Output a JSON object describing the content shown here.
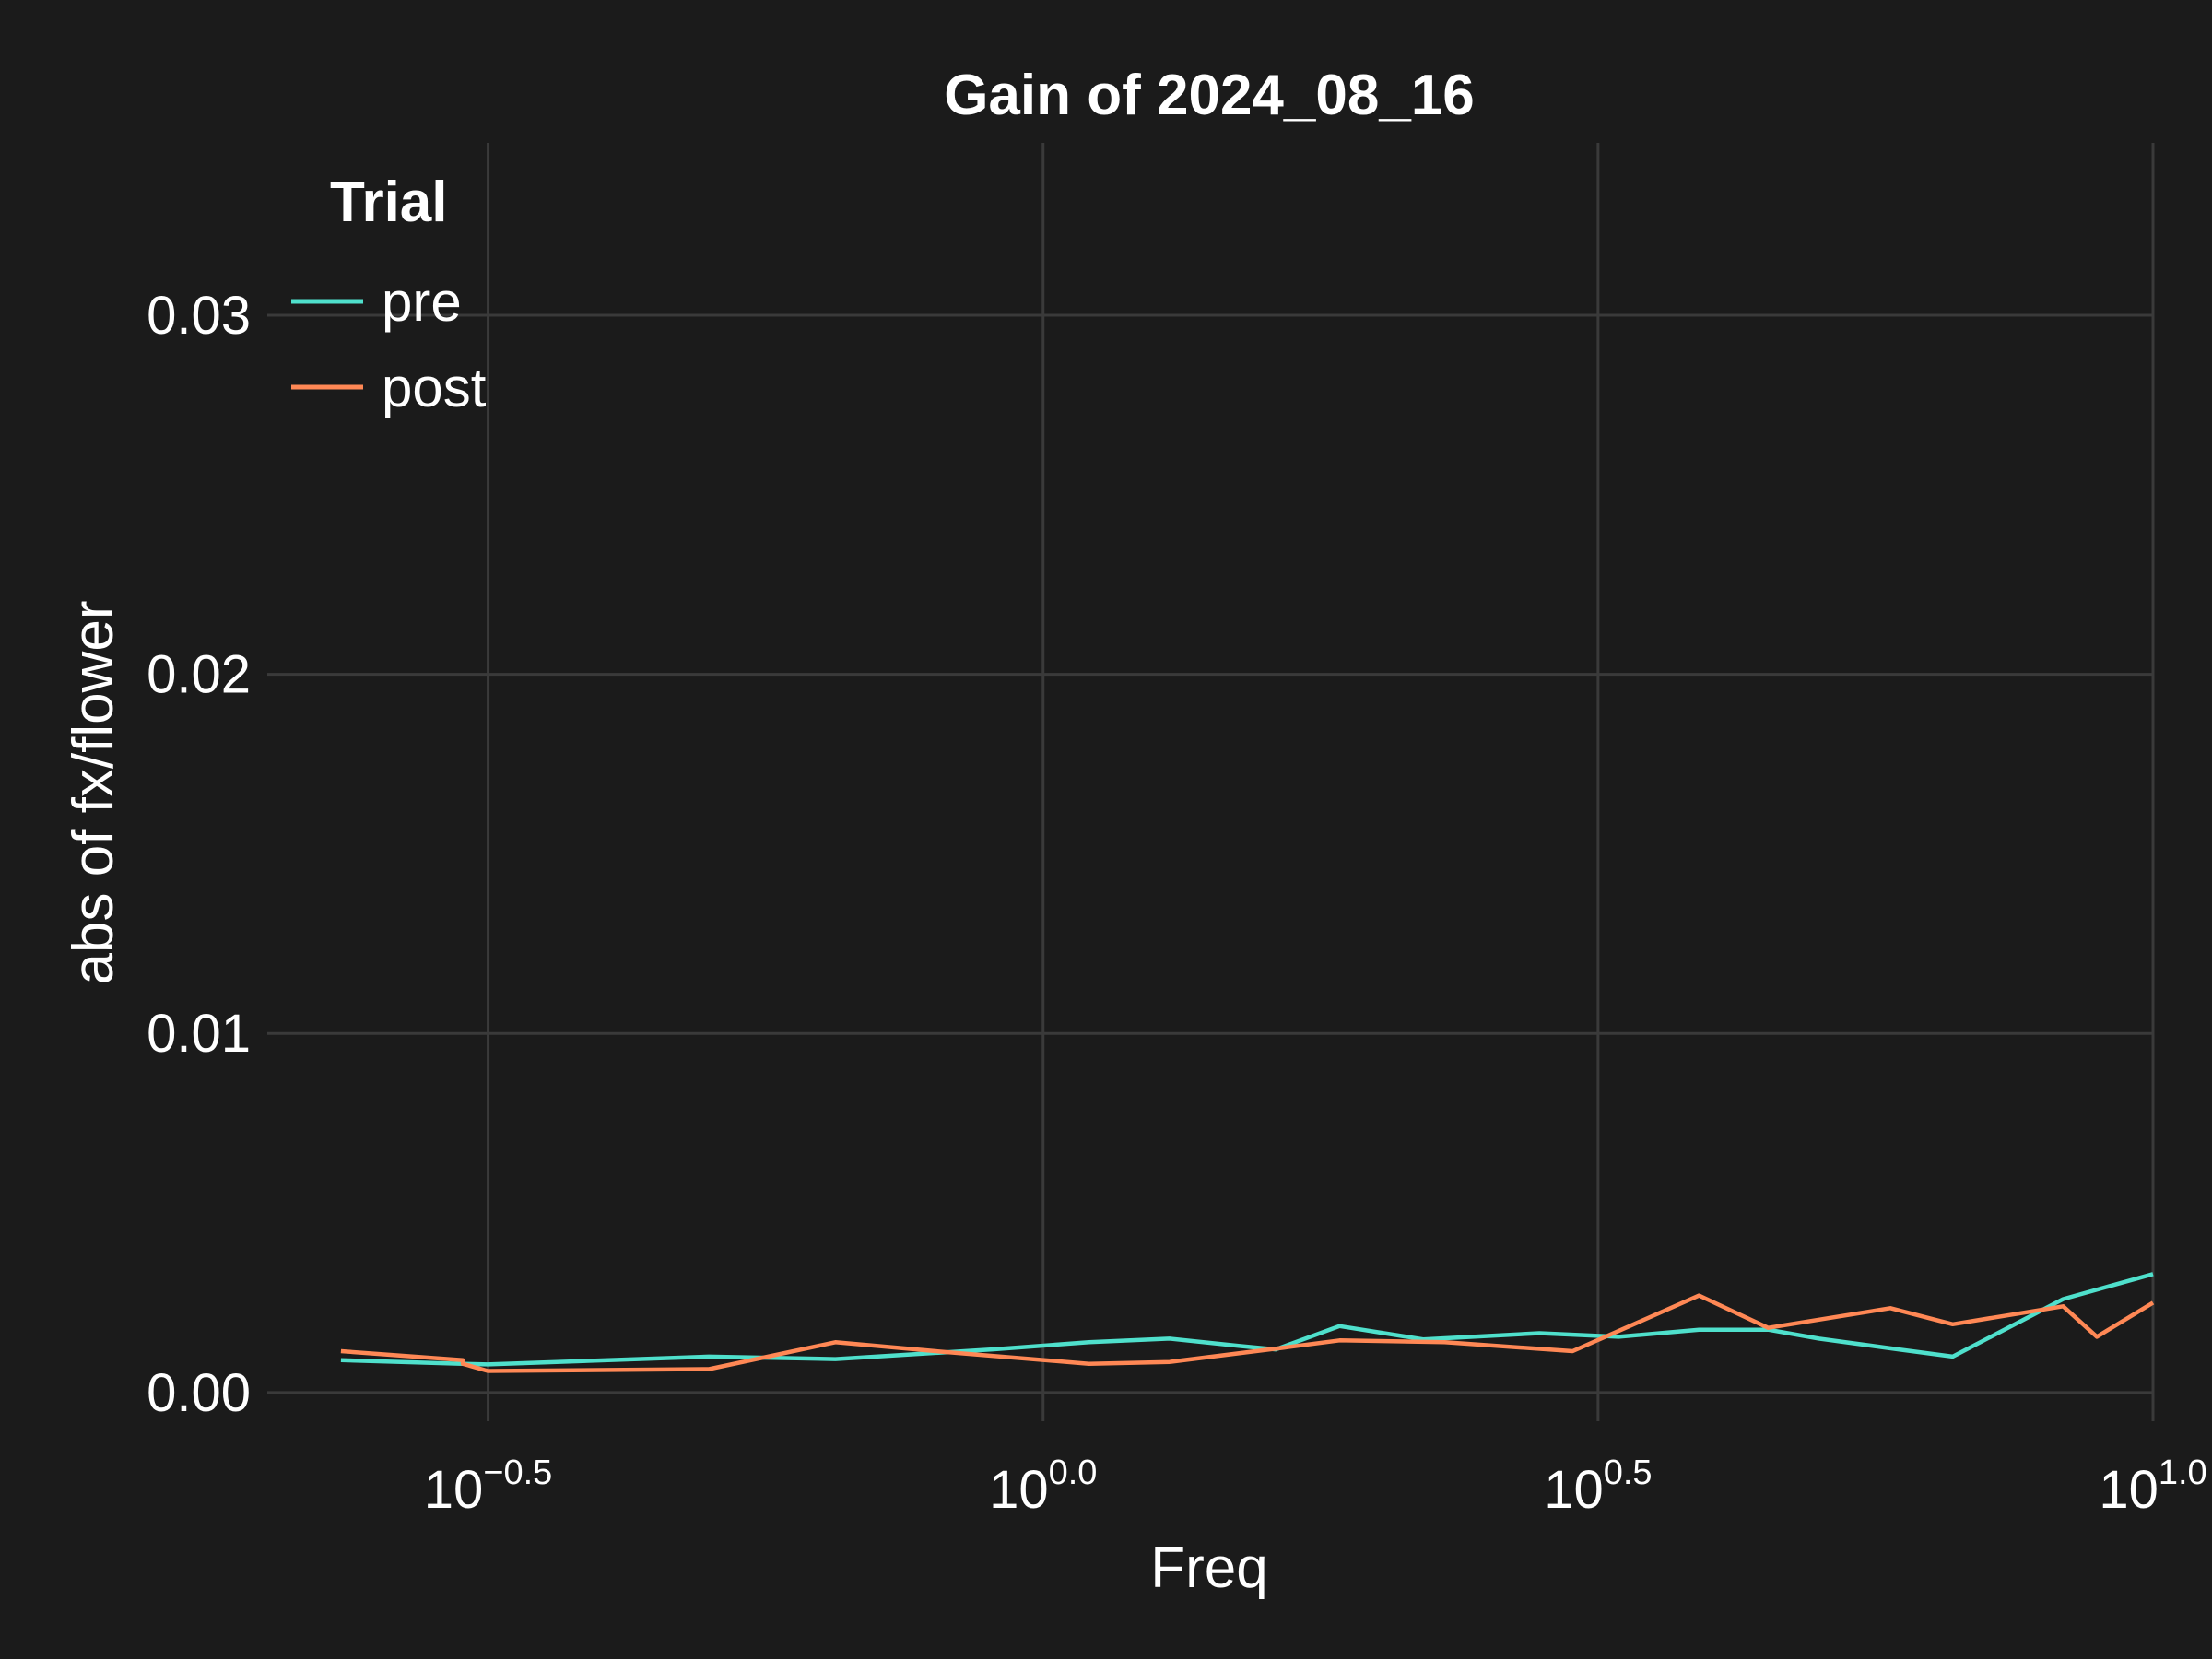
{
  "chart_data": {
    "type": "line",
    "title": "Gain of 2024_08_16",
    "xlabel": "Freq",
    "ylabel": "abs of fx/flower",
    "xscale": "log10",
    "xlim": [
      0.2,
      10
    ],
    "ylim": [
      -0.0008,
      0.0348
    ],
    "grid": true,
    "legend": {
      "title": "Trial",
      "placement": "top-left"
    },
    "x_ticks": [
      {
        "base": "10",
        "exp": "−0.5",
        "value": 0.3162
      },
      {
        "base": "10",
        "exp": "0.0",
        "value": 1.0
      },
      {
        "base": "10",
        "exp": "0.5",
        "value": 3.1623
      },
      {
        "base": "10",
        "exp": "1.0",
        "value": 10.0
      }
    ],
    "y_ticks": [
      {
        "label": "0.00",
        "value": 0.0
      },
      {
        "label": "0.01",
        "value": 0.01
      },
      {
        "label": "0.02",
        "value": 0.02
      },
      {
        "label": "0.03",
        "value": 0.03
      }
    ],
    "series": [
      {
        "name": "pre",
        "color": "#4fe0cc",
        "points": [
          [
            0.233,
            0.0009
          ],
          [
            0.3,
            0.0008
          ],
          [
            0.3,
            0.0008
          ],
          [
            0.316,
            0.00078
          ],
          [
            0.5,
            0.001
          ],
          [
            0.65,
            0.00093
          ],
          [
            0.9,
            0.0012
          ],
          [
            1.1,
            0.0014
          ],
          [
            1.3,
            0.0015
          ],
          [
            1.5,
            0.0013
          ],
          [
            1.62,
            0.0012
          ],
          [
            1.85,
            0.00185
          ],
          [
            2.2,
            0.00148
          ],
          [
            2.8,
            0.00165
          ],
          [
            3.3,
            0.00155
          ],
          [
            3.9,
            0.00175
          ],
          [
            4.5,
            0.00175
          ],
          [
            5.0,
            0.0015
          ],
          [
            5.9,
            0.0012
          ],
          [
            6.6,
            0.001
          ],
          [
            8.3,
            0.0026
          ],
          [
            10.0,
            0.0033
          ]
        ]
      },
      {
        "name": "post",
        "color": "#ff8855",
        "points": [
          [
            0.233,
            0.00115
          ],
          [
            0.3,
            0.0009
          ],
          [
            0.3,
            0.0008
          ],
          [
            0.316,
            0.0006
          ],
          [
            0.5,
            0.00065
          ],
          [
            0.65,
            0.0014
          ],
          [
            0.8,
            0.00115
          ],
          [
            1.1,
            0.0008
          ],
          [
            1.3,
            0.00085
          ],
          [
            1.65,
            0.00125
          ],
          [
            1.85,
            0.00145
          ],
          [
            2.3,
            0.0014
          ],
          [
            3.0,
            0.00115
          ],
          [
            3.9,
            0.0027
          ],
          [
            4.5,
            0.0018
          ],
          [
            5.8,
            0.00235
          ],
          [
            6.6,
            0.0019
          ],
          [
            8.3,
            0.0024
          ],
          [
            8.9,
            0.00155
          ],
          [
            10.0,
            0.0025
          ]
        ]
      }
    ]
  }
}
